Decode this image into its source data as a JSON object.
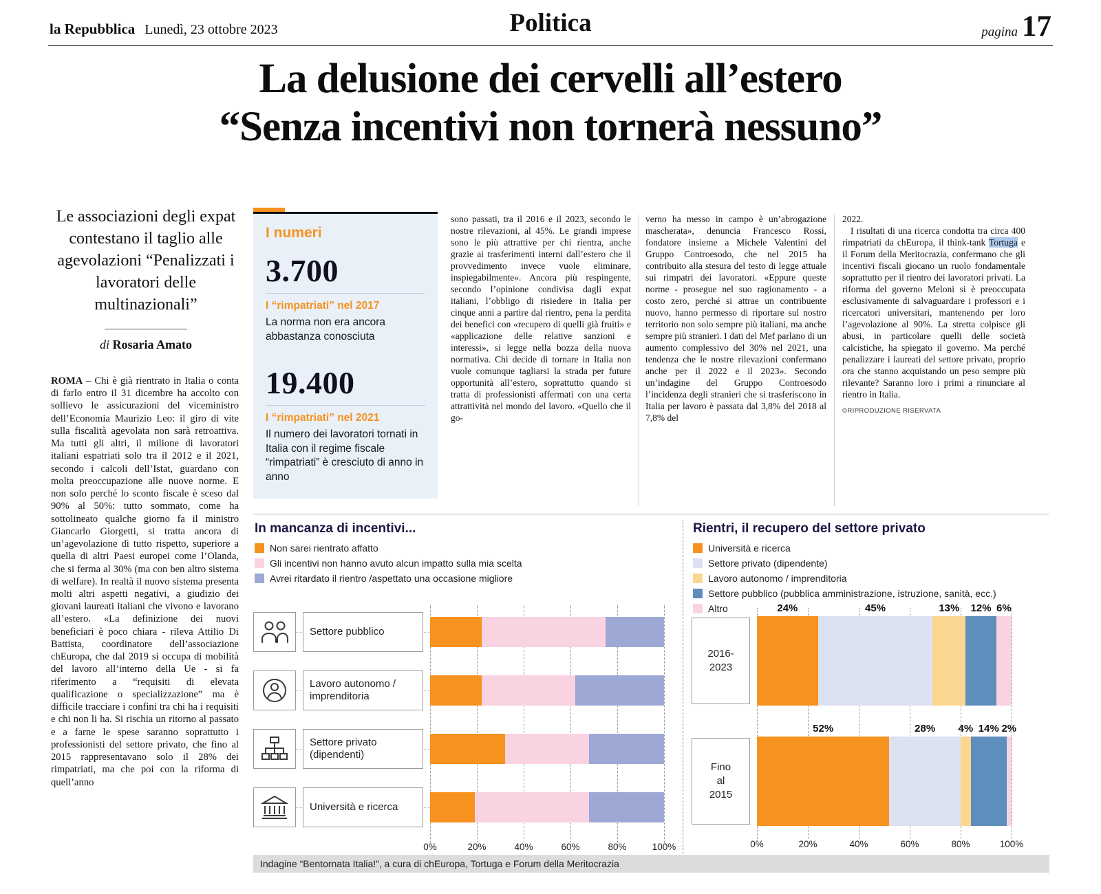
{
  "masthead": {
    "paper": "la Repubblica",
    "date": "Lunedì, 23 ottobre 2023",
    "section": "Politica",
    "page_word": "pagina",
    "page_number": "17"
  },
  "headline": {
    "line1": "La delusione dei cervelli all’estero",
    "line2": "“Senza incentivi non tornerà nessuno”"
  },
  "standfirst": "Le associazioni degli expat contestano il taglio alle agevolazioni “Penalizzati i lavoratori delle multinazionali”",
  "byline_prefix": "di ",
  "byline_name": "Rosaria Amato",
  "article": {
    "col1_lead": "ROMA",
    "col1_rest": " – Chi è già rientrato in Italia o conta di farlo entro il 31 dicembre ha accolto con sollievo le assicurazioni del viceministro dell’Economia Maurizio Leo: il giro di vite sulla fiscalità agevolata non sarà retroattiva. Ma tutti gli altri, il milione di lavoratori italiani espatriati solo tra il 2012 e il 2021, secondo i calcoli dell’Istat, guardano con molta preoccupazione alle nuove norme. E non solo perché lo sconto fiscale è sceso dal 90% al 50%: tutto sommato, come ha sottolineato qualche giorno fa il ministro Giancarlo Giorgetti, si tratta ancora di un’agevolazione di tutto rispetto, superiore a quella di altri Paesi europei come l’Olanda, che si ferma al 30% (ma con ben altro sistema di welfare). In realtà il nuovo sistema presenta molti altri aspetti negativi, a giudizio dei giovani laureati italiani che vivono e lavorano all’estero. «La definizione dei nuovi beneficiari è poco chiara - rileva Attilio Di Battista, coordinatore dell’associazione chEuropa, che dal 2019 si occupa di mobilità del lavoro all’interno della Ue - si fa riferimento a “requisiti di elevata qualificazione o specializzazione” ma è difficile tracciare i confini tra chi ha i requisiti e chi non li ha. Si rischia un ritorno al passato e a farne le spese saranno soprattutto i professionisti del settore privato, che fino al 2015 rappresentavano solo il 28% dei rimpatriati, ma che poi con la riforma di quell’anno",
    "col3": "sono passati, tra il 2016 e il 2023, secondo le nostre rilevazioni, al 45%. Le grandi imprese sono le più attrattive per chi rientra, anche grazie ai trasferimenti interni dall’estero che il provvedimento invece vuole eliminare, inspiegabilmente». Ancora più respingente, secondo l’opinione condivisa dagli expat italiani, l’obbligo di risiedere in Italia per cinque anni a partire dal rientro, pena la perdita dei benefici con «recupero di quelli già fruiti» e «applicazione delle relative sanzioni e interessi», si legge nella bozza della nuova normativa. Chi decide di tornare in Italia non vuole comunque tagliarsi la strada per future opportunità all’estero, soprattutto quando si tratta di professionisti affermati con una certa attrattività nel mondo del lavoro. «Quello che il go-",
    "col4": "verno ha messo in campo è un’abrogazione mascherata», denuncia Francesco Rossi, fondatore insieme a Michele Valentini del Gruppo Controesodo, che nel 2015 ha contribuito alla stesura del testo di legge attuale sui rimpatri dei lavoratori. «Eppure queste norme - prosegue nel suo ragionamento - a costo zero, perché si attrae un contribuente nuovo, hanno permesso di riportare sul nostro territorio non solo sempre più italiani, ma anche sempre più stranieri. I dati del Mef parlano di un aumento complessivo del 30% nel 2021, una tendenza che le nostre rilevazioni confermano anche per il 2022 e il 2023». Secondo un’indagine del Gruppo Controesodo l’incidenza degli stranieri che si trasferiscono in Italia per lavoro è passata dal 3,8% del 2018 al 7,8% del",
    "col5_lead": "2022.",
    "col5_before": "I risultati di una ricerca condotta tra circa 400 rimpatriati da chEuropa, il think-tank ",
    "col5_highlight": "Tortuga",
    "col5_after": " e il Forum della Meritocrazia, confermano che gli incentivi fiscali giocano un ruolo fondamentale soprattutto per il rientro dei lavoratori privati. La riforma del governo Meloni si è preoccupata esclusivamente di salvaguardare i professori e i ricercatori universitari, mantenendo per loro l’agevolazione al 90%. La stretta colpisce gli abusi, in particolare quelli delle società calcistiche, ha spiegato il governo. Ma perché penalizzare i laureati del settore privato, proprio ora che stanno acquistando un peso sempre più rilevante? Saranno loro i primi a rinunciare al rientro in Italia.",
    "copyright": "©RIPRODUZIONE RISERVATA"
  },
  "numbers_box": {
    "title": "I numeri",
    "items": [
      {
        "value": "3.700",
        "label": "I “rimpatriati” nel 2017",
        "desc": "La norma non era ancora abbastanza conosciuta"
      },
      {
        "value": "19.400",
        "label": "I “rimpatriati” nel 2021",
        "desc": "Il numero dei lavoratori tornati in Italia con il regime fiscale “rimpatriati” è cresciuto di anno in anno"
      }
    ]
  },
  "chart_data": [
    {
      "type": "bar",
      "orientation": "horizontal-stacked",
      "title": "In mancanza di incentivi...",
      "categories": [
        "Settore pubblico",
        "Lavoro autonomo / imprenditoria",
        "Settore privato (dipendenti)",
        "Università e ricerca"
      ],
      "icons": [
        "two-people",
        "person-badge",
        "org-chart",
        "university-building"
      ],
      "series": [
        {
          "name": "Non sarei rientrato affatto",
          "color": "#f6921e",
          "values": [
            22,
            22,
            32,
            19
          ]
        },
        {
          "name": "Gli incentivi non hanno avuto alcun impatto sulla mia scelta",
          "color": "#f9d3e2",
          "values": [
            53,
            40,
            36,
            49
          ]
        },
        {
          "name": "Avrei ritardato il rientro /aspettato una occasione migliore",
          "color": "#9da8d5",
          "values": [
            25,
            38,
            32,
            32
          ]
        }
      ],
      "x_ticks": [
        "0%",
        "20%",
        "40%",
        "60%",
        "80%",
        "100%"
      ],
      "xlim": [
        0,
        100
      ],
      "grid": "dotted-vertical",
      "legend_position": "top-left"
    },
    {
      "type": "bar",
      "orientation": "horizontal-stacked",
      "title": "Rientri, il recupero del settore privato",
      "categories": [
        "2016-\n2023",
        "Fino\nal\n2015"
      ],
      "series": [
        {
          "name": "Università e ricerca",
          "color": "#f6921e",
          "values": [
            24,
            52
          ]
        },
        {
          "name": "Settore privato (dipendente)",
          "color": "#dce1f2",
          "values": [
            45,
            28
          ]
        },
        {
          "name": "Lavoro autonomo / imprenditoria",
          "color": "#fbd690",
          "values": [
            13,
            4
          ]
        },
        {
          "name": "Settore pubblico (pubblica amministrazione, istruzione, sanità, ecc.)",
          "color": "#5e8fbc",
          "values": [
            12,
            14
          ]
        },
        {
          "name": "Altro",
          "color": "#f9d3e2",
          "values": [
            6,
            2
          ]
        }
      ],
      "x_ticks": [
        "0%",
        "20%",
        "40%",
        "60%",
        "80%",
        "100%"
      ],
      "xlim": [
        0,
        100
      ],
      "grid": "dotted-vertical",
      "legend_position": "top-left",
      "value_labels": "above-segments-percent"
    }
  ],
  "chart_footer": "Indagine “Bentornata Italia!”, a cura di chEuropa, Tortuga e Forum della Meritocrazia"
}
